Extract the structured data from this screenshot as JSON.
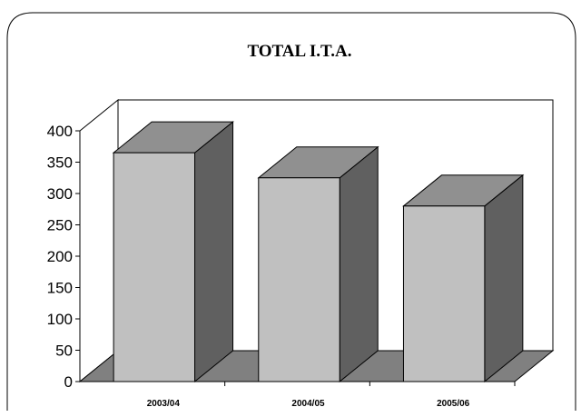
{
  "chart_data": {
    "type": "bar",
    "title": "TOTAL I.T.A.",
    "categories": [
      "2003/04",
      "2004/05",
      "2005/06"
    ],
    "values": [
      365,
      325,
      280
    ],
    "xlabel": "",
    "ylabel": "",
    "ylim": [
      0,
      400
    ],
    "yticks": [
      0,
      50,
      100,
      150,
      200,
      250,
      300,
      350,
      400
    ],
    "three_d": true,
    "legend": "none",
    "grid": false,
    "colors": {
      "bar_front": "#c0c0c0",
      "bar_side": "#606060",
      "bar_top": "#909090",
      "floor": "#808080"
    }
  }
}
